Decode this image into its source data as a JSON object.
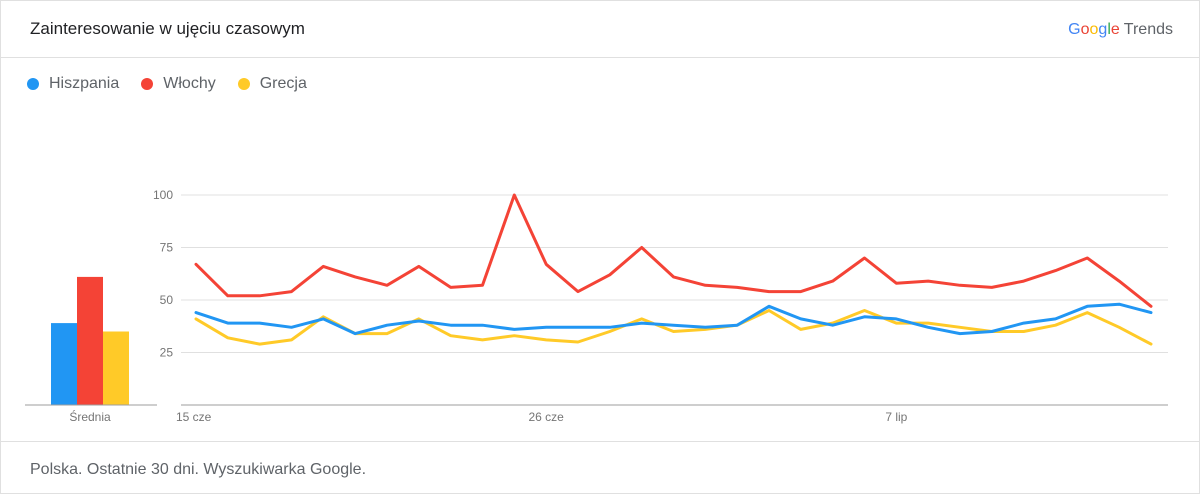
{
  "header": {
    "title": "Zainteresowanie w ujęciu czasowym",
    "brand_google": "Google",
    "brand_trends": "Trends"
  },
  "footer": {
    "text": "Polska. Ostatnie 30 dni. Wyszukiwarka Google."
  },
  "chart_data": {
    "type": "line",
    "title": "Zainteresowanie w ujęciu czasowym",
    "yticks": [
      25,
      50,
      75,
      100
    ],
    "ylim": [
      0,
      100
    ],
    "x_ticks": [
      "15 cze",
      "26 cze",
      "7 lip"
    ],
    "x_tick_indices": [
      0,
      11,
      22
    ],
    "legend_position": "top-left",
    "grid": true,
    "average_label": "Średnia",
    "series": [
      {
        "name": "Hiszpania",
        "color": "#2196f3",
        "values": [
          44,
          39,
          39,
          37,
          41,
          34,
          38,
          40,
          38,
          38,
          36,
          37,
          37,
          37,
          39,
          38,
          37,
          38,
          47,
          41,
          38,
          42,
          41,
          37,
          34,
          35,
          39,
          41,
          47,
          48,
          44
        ],
        "average": 39
      },
      {
        "name": "Włochy",
        "color": "#f44336",
        "values": [
          67,
          52,
          52,
          54,
          66,
          61,
          57,
          66,
          56,
          57,
          100,
          67,
          54,
          62,
          75,
          61,
          57,
          56,
          54,
          54,
          59,
          70,
          58,
          59,
          57,
          56,
          59,
          64,
          70,
          59,
          47
        ],
        "average": 61
      },
      {
        "name": "Grecja",
        "color": "#ffca28",
        "values": [
          41,
          32,
          29,
          31,
          42,
          34,
          34,
          41,
          33,
          31,
          33,
          31,
          30,
          35,
          41,
          35,
          36,
          38,
          45,
          36,
          39,
          45,
          39,
          39,
          37,
          35,
          35,
          38,
          44,
          37,
          29
        ],
        "average": 35
      }
    ]
  }
}
